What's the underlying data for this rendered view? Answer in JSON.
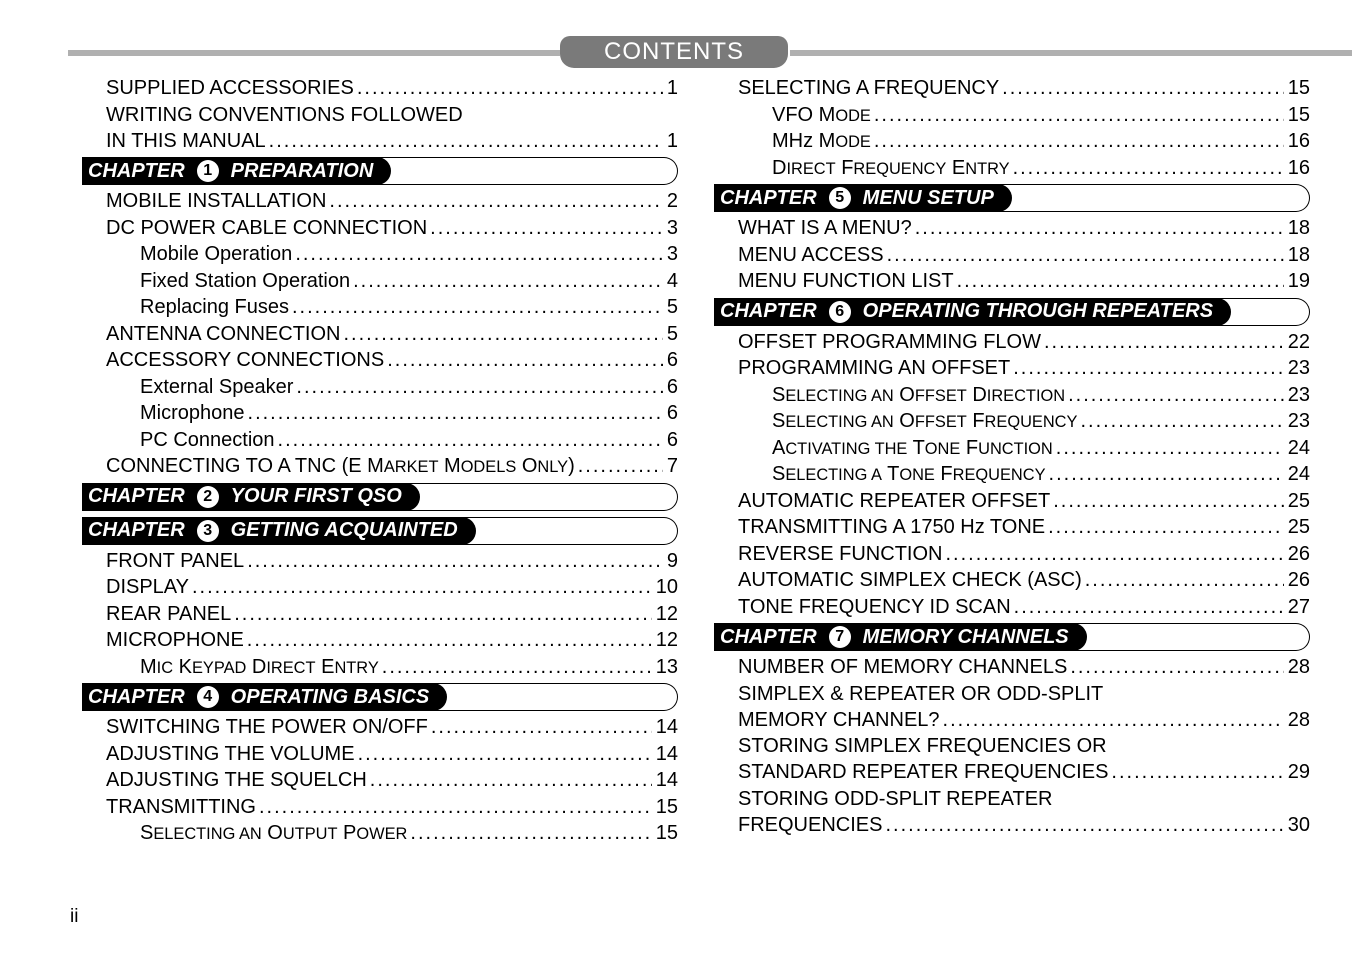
{
  "header": {
    "title": "CONTENTS"
  },
  "page_number": "ii",
  "colors": {
    "bar_gray": "#b0b0b0",
    "title_pill": "#7a7a7a",
    "chapter_black": "#000000",
    "text": "#000000",
    "white": "#ffffff"
  },
  "columns": [
    {
      "items": [
        {
          "type": "entry",
          "level": 1,
          "text": "SUPPLIED ACCESSORIES",
          "page": "1"
        },
        {
          "type": "entry",
          "level": 1,
          "multiline": true,
          "text1": "WRITING CONVENTIONS FOLLOWED",
          "text2": "IN THIS MANUAL",
          "page": "1"
        },
        {
          "type": "chapter",
          "num": "1",
          "title": "PREPARATION"
        },
        {
          "type": "entry",
          "level": 1,
          "text": "MOBILE INSTALLATION",
          "page": "2"
        },
        {
          "type": "entry",
          "level": 1,
          "text": "DC POWER CABLE CONNECTION",
          "page": "3"
        },
        {
          "type": "entry",
          "level": 2,
          "text": "Mobile Operation",
          "page": "3"
        },
        {
          "type": "entry",
          "level": 2,
          "text": "Fixed Station Operation",
          "page": "4"
        },
        {
          "type": "entry",
          "level": 2,
          "text": "Replacing Fuses",
          "page": "5"
        },
        {
          "type": "entry",
          "level": 1,
          "text": "ANTENNA CONNECTION",
          "page": "5"
        },
        {
          "type": "entry",
          "level": 1,
          "text": "ACCESSORY CONNECTIONS",
          "page": "6"
        },
        {
          "type": "entry",
          "level": 2,
          "text": "External Speaker",
          "page": "6"
        },
        {
          "type": "entry",
          "level": 2,
          "text": "Microphone",
          "page": "6"
        },
        {
          "type": "entry",
          "level": 2,
          "text": "PC Connection",
          "page": "6"
        },
        {
          "type": "entry",
          "level": 1,
          "smallcaps": true,
          "text_parts": [
            [
              "CONNECTING TO A TNC (E M",
              ""
            ],
            [
              "ARKET",
              "sc"
            ],
            [
              " M",
              ""
            ],
            [
              "ODELS",
              "sc"
            ],
            [
              " O",
              ""
            ],
            [
              "NLY",
              "sc"
            ],
            [
              ")",
              ""
            ]
          ],
          "page": "7"
        },
        {
          "type": "chapter",
          "num": "2",
          "title": "YOUR FIRST QSO"
        },
        {
          "type": "chapter",
          "num": "3",
          "title": "GETTING ACQUAINTED"
        },
        {
          "type": "entry",
          "level": 1,
          "text": "FRONT PANEL",
          "page": "9"
        },
        {
          "type": "entry",
          "level": 1,
          "text": "DISPLAY",
          "page": "10"
        },
        {
          "type": "entry",
          "level": 1,
          "text": "REAR PANEL",
          "page": "12"
        },
        {
          "type": "entry",
          "level": 1,
          "text": "MICROPHONE",
          "page": "12"
        },
        {
          "type": "entry",
          "level": 2,
          "smallcaps": true,
          "text_parts": [
            [
              "M",
              ""
            ],
            [
              "IC",
              "sc"
            ],
            [
              " K",
              ""
            ],
            [
              "EYPAD",
              "sc"
            ],
            [
              " D",
              ""
            ],
            [
              "IRECT",
              "sc"
            ],
            [
              " E",
              ""
            ],
            [
              "NTRY",
              "sc"
            ]
          ],
          "page": "13"
        },
        {
          "type": "chapter",
          "num": "4",
          "title": "OPERATING BASICS"
        },
        {
          "type": "entry",
          "level": 1,
          "text": "SWITCHING THE POWER ON/OFF",
          "page": "14"
        },
        {
          "type": "entry",
          "level": 1,
          "text": "ADJUSTING THE VOLUME",
          "page": "14"
        },
        {
          "type": "entry",
          "level": 1,
          "text": "ADJUSTING THE SQUELCH",
          "page": "14"
        },
        {
          "type": "entry",
          "level": 1,
          "text": "TRANSMITTING",
          "page": "15"
        },
        {
          "type": "entry",
          "level": 2,
          "smallcaps": true,
          "text_parts": [
            [
              "S",
              ""
            ],
            [
              "ELECTING AN",
              "sc"
            ],
            [
              " O",
              ""
            ],
            [
              "UTPUT",
              "sc"
            ],
            [
              " P",
              ""
            ],
            [
              "OWER",
              "sc"
            ]
          ],
          "page": "15"
        }
      ]
    },
    {
      "items": [
        {
          "type": "entry",
          "level": 1,
          "text": "SELECTING A FREQUENCY",
          "page": "15"
        },
        {
          "type": "entry",
          "level": 2,
          "smallcaps": true,
          "text_parts": [
            [
              "VFO M",
              ""
            ],
            [
              "ODE",
              "sc"
            ]
          ],
          "page": "15"
        },
        {
          "type": "entry",
          "level": 2,
          "smallcaps": true,
          "text_parts": [
            [
              "MHz M",
              ""
            ],
            [
              "ODE",
              "sc"
            ]
          ],
          "page": "16"
        },
        {
          "type": "entry",
          "level": 2,
          "smallcaps": true,
          "text_parts": [
            [
              "D",
              ""
            ],
            [
              "IRECT",
              "sc"
            ],
            [
              " F",
              ""
            ],
            [
              "REQUENCY",
              "sc"
            ],
            [
              " E",
              ""
            ],
            [
              "NTRY",
              "sc"
            ]
          ],
          "page": "16"
        },
        {
          "type": "chapter",
          "num": "5",
          "title": "MENU SETUP"
        },
        {
          "type": "entry",
          "level": 1,
          "text": "WHAT IS A MENU?",
          "page": "18"
        },
        {
          "type": "entry",
          "level": 1,
          "text": "MENU ACCESS",
          "page": "18"
        },
        {
          "type": "entry",
          "level": 1,
          "text": "MENU FUNCTION LIST",
          "page": "19"
        },
        {
          "type": "chapter",
          "num": "6",
          "title": "OPERATING THROUGH REPEATERS"
        },
        {
          "type": "entry",
          "level": 1,
          "text": "OFFSET PROGRAMMING FLOW",
          "page": "22"
        },
        {
          "type": "entry",
          "level": 1,
          "text": "PROGRAMMING AN OFFSET",
          "page": "23"
        },
        {
          "type": "entry",
          "level": 2,
          "smallcaps": true,
          "text_parts": [
            [
              "S",
              ""
            ],
            [
              "ELECTING AN",
              "sc"
            ],
            [
              " O",
              ""
            ],
            [
              "FFSET",
              "sc"
            ],
            [
              " D",
              ""
            ],
            [
              "IRECTION",
              "sc"
            ]
          ],
          "page": "23"
        },
        {
          "type": "entry",
          "level": 2,
          "smallcaps": true,
          "text_parts": [
            [
              "S",
              ""
            ],
            [
              "ELECTING AN",
              "sc"
            ],
            [
              " O",
              ""
            ],
            [
              "FFSET",
              "sc"
            ],
            [
              " F",
              ""
            ],
            [
              "REQUENCY",
              "sc"
            ]
          ],
          "page": "23"
        },
        {
          "type": "entry",
          "level": 2,
          "smallcaps": true,
          "text_parts": [
            [
              "A",
              ""
            ],
            [
              "CTIVATING THE",
              "sc"
            ],
            [
              " T",
              ""
            ],
            [
              "ONE",
              "sc"
            ],
            [
              " F",
              ""
            ],
            [
              "UNCTION",
              "sc"
            ]
          ],
          "page": "24"
        },
        {
          "type": "entry",
          "level": 2,
          "smallcaps": true,
          "text_parts": [
            [
              "S",
              ""
            ],
            [
              "ELECTING A",
              "sc"
            ],
            [
              " T",
              ""
            ],
            [
              "ONE",
              "sc"
            ],
            [
              " F",
              ""
            ],
            [
              "REQUENCY",
              "sc"
            ]
          ],
          "page": "24"
        },
        {
          "type": "entry",
          "level": 1,
          "text": "AUTOMATIC REPEATER OFFSET",
          "page": "25"
        },
        {
          "type": "entry",
          "level": 1,
          "text": "TRANSMITTING A 1750 Hz TONE",
          "page": "25"
        },
        {
          "type": "entry",
          "level": 1,
          "text": "REVERSE FUNCTION",
          "page": "26"
        },
        {
          "type": "entry",
          "level": 1,
          "text": "AUTOMATIC SIMPLEX CHECK (ASC)",
          "page": "26"
        },
        {
          "type": "entry",
          "level": 1,
          "text": "TONE FREQUENCY ID SCAN",
          "page": "27"
        },
        {
          "type": "chapter",
          "num": "7",
          "title": "MEMORY CHANNELS"
        },
        {
          "type": "entry",
          "level": 1,
          "text": "NUMBER OF MEMORY CHANNELS",
          "page": "28"
        },
        {
          "type": "entry",
          "level": 1,
          "multiline": true,
          "text1": "SIMPLEX & REPEATER OR ODD-SPLIT",
          "text2": "MEMORY CHANNEL?",
          "page": "28"
        },
        {
          "type": "entry",
          "level": 1,
          "multiline": true,
          "text1": "STORING SIMPLEX FREQUENCIES OR",
          "text2": "STANDARD REPEATER FREQUENCIES",
          "page": "29"
        },
        {
          "type": "entry",
          "level": 1,
          "multiline": true,
          "text1": "STORING ODD-SPLIT REPEATER",
          "text2": "FREQUENCIES",
          "page": "30"
        }
      ]
    }
  ]
}
